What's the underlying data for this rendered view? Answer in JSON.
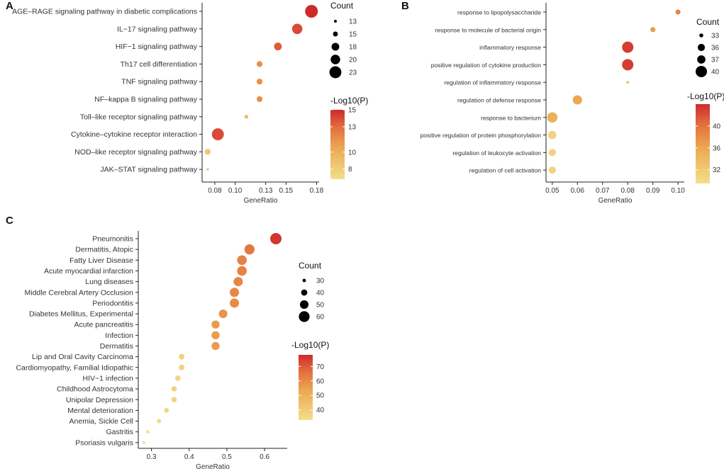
{
  "chart_data": [
    {
      "panel": "A",
      "type": "scatter",
      "xlabel": "GeneRatio",
      "xlim": [
        0.0675,
        0.1825
      ],
      "xticks": [
        0.08,
        0.1,
        0.13,
        0.15,
        0.18
      ],
      "xtick_labels": [
        "0.08",
        "0.10",
        "0.13",
        "0.15",
        "0.18"
      ],
      "categories": [
        "AGE–RAGE signaling pathway in diabetic complications",
        "IL−17 signaling pathway",
        "HIF−1 signaling pathway",
        "Th17 cell differentiation",
        "TNF signaling pathway",
        "NF–kappa B signaling pathway",
        "Toll–like receptor signaling pathway",
        "Cytokine–cytokine receptor interaction",
        "NOD–like receptor signaling pathway",
        "JAK–STAT signaling pathway"
      ],
      "gene_ratio": [
        0.175,
        0.161,
        0.142,
        0.124,
        0.124,
        0.124,
        0.111,
        0.083,
        0.073,
        0.073
      ],
      "count": [
        24,
        21,
        18,
        16,
        16,
        16,
        14,
        23,
        16,
        13
      ],
      "neg_log10_p": [
        15,
        14,
        13.5,
        11.5,
        11.5,
        11.5,
        9,
        14,
        8.5,
        7.5
      ],
      "size_legend": {
        "title": "Count",
        "values": [
          13,
          15,
          18,
          20,
          23
        ]
      },
      "color_legend": {
        "title": "-Log10(P)",
        "ticks": [
          15,
          13,
          10,
          8
        ],
        "range": [
          6.8,
          15
        ]
      }
    },
    {
      "panel": "B",
      "type": "scatter",
      "xlabel": "GeneRatio",
      "xlim": [
        0.0475,
        0.1025
      ],
      "xticks": [
        0.05,
        0.06,
        0.07,
        0.08,
        0.09,
        0.1
      ],
      "xtick_labels": [
        "0.05",
        "0.06",
        "0.07",
        "0.08",
        "0.09",
        "0.10"
      ],
      "categories": [
        "response to lipopolysaccharide",
        "response to molecule of bacterial origin",
        "inflammatory response",
        "positive regulation of cytokine production",
        "regulation of inflammatory response",
        "regulation of defense response",
        "response to bacterium",
        "positive regulation of protein phosphorylation",
        "regulation of leukocyte activation",
        "regulation of cell activation"
      ],
      "gene_ratio": [
        0.1,
        0.09,
        0.08,
        0.08,
        0.08,
        0.06,
        0.05,
        0.05,
        0.05,
        0.05
      ],
      "count": [
        34,
        34,
        40,
        40,
        32,
        38,
        39,
        37,
        36,
        36
      ],
      "neg_log10_p": [
        39,
        37,
        43,
        43,
        33,
        36,
        35,
        31,
        31,
        31
      ],
      "size_legend": {
        "title": "Count",
        "values": [
          33,
          36,
          37,
          40
        ]
      },
      "color_legend": {
        "title": "-Log10(P)",
        "ticks": [
          40,
          36,
          32
        ],
        "range": [
          29.5,
          44
        ]
      }
    },
    {
      "panel": "C",
      "type": "scatter",
      "xlabel": "GeneRatio",
      "xlim": [
        0.265,
        0.66
      ],
      "xticks": [
        0.3,
        0.4,
        0.5,
        0.6
      ],
      "xtick_labels": [
        "0.3",
        "0.4",
        "0.5",
        "0.6"
      ],
      "categories": [
        "Pneumonitis",
        "Dermatitis, Atopic",
        "Fatty Liver Disease",
        "Acute myocardial infarction",
        "Lung diseases",
        "Middle Cerebral Artery Occlusion",
        "Periodontitis",
        "Diabetes Mellitus, Experimental",
        "Acute pancreatitis",
        "Infection",
        "Dermatitis",
        "Lip and Oral Cavity Carcinoma",
        "Cardiomyopathy, Familial Idiopathic",
        "HIV−1 infection",
        "Childhood Astrocytoma",
        "Unipolar Depression",
        "Mental deterioration",
        "Anemia, Sickle Cell",
        "Gastritis",
        "Psoriasis vulgaris"
      ],
      "gene_ratio": [
        0.63,
        0.56,
        0.54,
        0.54,
        0.53,
        0.52,
        0.52,
        0.49,
        0.47,
        0.47,
        0.47,
        0.38,
        0.38,
        0.37,
        0.36,
        0.36,
        0.34,
        0.32,
        0.29,
        0.28
      ],
      "count": [
        63,
        57,
        55,
        55,
        53,
        53,
        53,
        50,
        48,
        48,
        48,
        38,
        38,
        37,
        37,
        37,
        35,
        33,
        30,
        28
      ],
      "neg_log10_p": [
        76,
        65,
        62,
        62,
        61,
        61,
        60,
        58,
        56,
        56,
        56,
        38,
        38,
        37,
        37,
        37,
        36,
        35,
        33,
        33
      ],
      "size_legend": {
        "title": "Count",
        "values": [
          30,
          40,
          50,
          60
        ]
      },
      "color_legend": {
        "title": "-Log10(P)",
        "ticks": [
          70,
          60,
          50,
          40
        ],
        "range": [
          33,
          78
        ]
      }
    }
  ]
}
